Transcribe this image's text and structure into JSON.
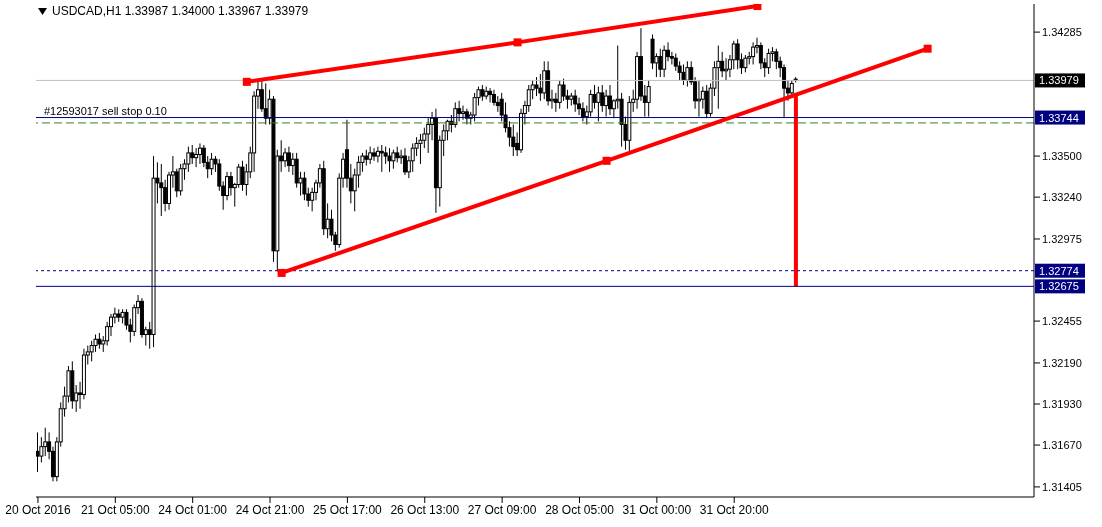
{
  "chart_data": {
    "type": "candlestick",
    "title": "USDCAD,H1  1.33987 1.34000 1.33967 1.33979",
    "categories": [
      "20 Oct 2016",
      null,
      null,
      null,
      null,
      null,
      null,
      null,
      null,
      null,
      null,
      null,
      null,
      null,
      null,
      null,
      null,
      null,
      null,
      null,
      "21 Oct 05:00",
      null,
      null,
      null,
      null,
      null,
      null,
      null,
      null,
      null,
      null,
      null,
      null,
      null,
      null,
      null,
      null,
      null,
      null,
      null,
      "24 Oct 01:00",
      null,
      null,
      null,
      null,
      null,
      null,
      null,
      null,
      null,
      null,
      null,
      null,
      null,
      null,
      null,
      null,
      null,
      null,
      null,
      "24 Oct 21:00",
      null,
      null,
      null,
      null,
      null,
      null,
      null,
      null,
      null,
      null,
      null,
      null,
      null,
      null,
      null,
      null,
      null,
      null,
      null,
      "25 Oct 17:00",
      null,
      null,
      null,
      null,
      null,
      null,
      null,
      null,
      null,
      null,
      null,
      null,
      null,
      null,
      null,
      null,
      null,
      null,
      null,
      "26 Oct 13:00",
      null,
      null,
      null,
      null,
      null,
      null,
      null,
      null,
      null,
      null,
      null,
      null,
      null,
      null,
      null,
      null,
      null,
      null,
      null,
      "27 Oct 09:00",
      null,
      null,
      null,
      null,
      null,
      null,
      null,
      null,
      null,
      null,
      null,
      null,
      null,
      null,
      null,
      null,
      null,
      null,
      null,
      "28 Oct 05:00",
      null,
      null,
      null,
      null,
      null,
      null,
      null,
      null,
      null,
      null,
      null,
      null,
      null,
      null,
      null,
      null,
      null,
      null,
      null,
      "31 Oct 00:00",
      null,
      null,
      null,
      null,
      null,
      null,
      null,
      null,
      null,
      null,
      null,
      null,
      null,
      null,
      null,
      null,
      null,
      null,
      null,
      "31 Oct 20:00",
      null,
      null,
      null,
      null,
      null,
      null,
      null,
      null,
      null,
      null,
      null,
      null,
      null,
      null,
      null,
      null,
      null,
      null,
      null,
      null,
      null,
      null,
      null,
      null,
      null,
      null,
      null,
      null,
      null,
      null,
      null,
      null,
      null,
      null,
      null,
      null,
      null,
      null,
      null,
      null,
      null,
      null,
      null,
      null,
      null,
      null,
      null,
      null,
      null,
      null,
      null,
      null,
      null,
      null,
      null,
      null,
      null,
      null,
      null,
      null,
      null,
      null,
      null,
      null,
      null,
      null,
      null,
      null,
      null,
      null,
      null,
      null,
      null,
      null,
      null,
      null,
      null
    ],
    "ohlc": [
      [
        1.3163,
        1.3175,
        1.315,
        1.316
      ],
      [
        1.316,
        1.3172,
        1.3156,
        1.3166
      ],
      [
        1.3166,
        1.3178,
        1.316,
        1.3169
      ],
      [
        1.3169,
        1.3175,
        1.3158,
        1.3163
      ],
      [
        1.3163,
        1.3166,
        1.3144,
        1.3147
      ],
      [
        1.3147,
        1.3172,
        1.3144,
        1.3169
      ],
      [
        1.3169,
        1.3194,
        1.3166,
        1.319
      ],
      [
        1.319,
        1.3204,
        1.3185,
        1.3198
      ],
      [
        1.3198,
        1.3217,
        1.3194,
        1.3214
      ],
      [
        1.3214,
        1.322,
        1.319,
        1.3195
      ],
      [
        1.3195,
        1.3205,
        1.3188,
        1.32
      ],
      [
        1.32,
        1.3207,
        1.319,
        1.3199
      ],
      [
        1.3199,
        1.3228,
        1.3196,
        1.3224
      ],
      [
        1.3224,
        1.323,
        1.3218,
        1.3226
      ],
      [
        1.3226,
        1.3233,
        1.322,
        1.323
      ],
      [
        1.323,
        1.3237,
        1.3226,
        1.3234
      ],
      [
        1.3234,
        1.3238,
        1.3228,
        1.3231
      ],
      [
        1.3231,
        1.3236,
        1.3226,
        1.3233
      ],
      [
        1.3233,
        1.3245,
        1.323,
        1.3242
      ],
      [
        1.3242,
        1.325,
        1.3236,
        1.3248
      ],
      [
        1.3248,
        1.3254,
        1.3244,
        1.325
      ],
      [
        1.325,
        1.3253,
        1.3245,
        1.3248
      ],
      [
        1.3248,
        1.3253,
        1.3244,
        1.3251
      ],
      [
        1.3251,
        1.3253,
        1.324,
        1.3243
      ],
      [
        1.3243,
        1.3247,
        1.3232,
        1.3239
      ],
      [
        1.3239,
        1.3256,
        1.3236,
        1.3254
      ],
      [
        1.3254,
        1.3262,
        1.325,
        1.3258
      ],
      [
        1.3258,
        1.326,
        1.3235,
        1.3237
      ],
      [
        1.3237,
        1.3242,
        1.323,
        1.324
      ],
      [
        1.324,
        1.3245,
        1.3228,
        1.3237
      ],
      [
        1.3237,
        1.335,
        1.3229,
        1.3336
      ],
      [
        1.3336,
        1.3346,
        1.332,
        1.3333
      ],
      [
        1.3333,
        1.3345,
        1.3312,
        1.333
      ],
      [
        1.333,
        1.3335,
        1.3315,
        1.332
      ],
      [
        1.332,
        1.334,
        1.3316,
        1.3338
      ],
      [
        1.3338,
        1.335,
        1.333,
        1.334
      ],
      [
        1.334,
        1.3342,
        1.3324,
        1.3328
      ],
      [
        1.3328,
        1.3345,
        1.3325,
        1.3342
      ],
      [
        1.3342,
        1.3348,
        1.3335,
        1.3345
      ],
      [
        1.3345,
        1.3356,
        1.334,
        1.3352
      ],
      [
        1.3352,
        1.3357,
        1.3345,
        1.3349
      ],
      [
        1.3349,
        1.3355,
        1.3343,
        1.3351
      ],
      [
        1.3351,
        1.3358,
        1.3345,
        1.3355
      ],
      [
        1.3355,
        1.3357,
        1.3343,
        1.3346
      ],
      [
        1.3346,
        1.335,
        1.3336,
        1.3342
      ],
      [
        1.3342,
        1.3352,
        1.3338,
        1.3348
      ],
      [
        1.3348,
        1.335,
        1.334,
        1.3345
      ],
      [
        1.3345,
        1.3348,
        1.3328,
        1.3331
      ],
      [
        1.3331,
        1.3334,
        1.3316,
        1.3325
      ],
      [
        1.3325,
        1.334,
        1.3322,
        1.3337
      ],
      [
        1.3337,
        1.334,
        1.3325,
        1.333
      ],
      [
        1.333,
        1.3333,
        1.3318,
        1.3332
      ],
      [
        1.3332,
        1.3345,
        1.333,
        1.3343
      ],
      [
        1.3343,
        1.3347,
        1.3328,
        1.3332
      ],
      [
        1.3332,
        1.3345,
        1.3325,
        1.334
      ],
      [
        1.334,
        1.3356,
        1.3336,
        1.3352
      ],
      [
        1.3352,
        1.3391,
        1.334,
        1.3388
      ],
      [
        1.3388,
        1.3399,
        1.338,
        1.3392
      ],
      [
        1.3392,
        1.3398,
        1.3378,
        1.338
      ],
      [
        1.338,
        1.3396,
        1.337,
        1.3374
      ],
      [
        1.3374,
        1.3392,
        1.337,
        1.3386
      ],
      [
        1.3386,
        1.3388,
        1.3283,
        1.329
      ],
      [
        1.329,
        1.3354,
        1.3277,
        1.335
      ],
      [
        1.335,
        1.336,
        1.334,
        1.3347
      ],
      [
        1.3347,
        1.3355,
        1.3343,
        1.3352
      ],
      [
        1.3352,
        1.3356,
        1.334,
        1.3344
      ],
      [
        1.3344,
        1.3352,
        1.3338,
        1.3348
      ],
      [
        1.3348,
        1.3352,
        1.333,
        1.3333
      ],
      [
        1.3333,
        1.334,
        1.3325,
        1.3336
      ],
      [
        1.3336,
        1.334,
        1.3322,
        1.3326
      ],
      [
        1.3326,
        1.333,
        1.3318,
        1.3322
      ],
      [
        1.3322,
        1.333,
        1.3315,
        1.3327
      ],
      [
        1.3327,
        1.3335,
        1.3322,
        1.3333
      ],
      [
        1.3333,
        1.3345,
        1.333,
        1.3342
      ],
      [
        1.3342,
        1.3347,
        1.33,
        1.3304
      ],
      [
        1.3304,
        1.332,
        1.3298,
        1.331
      ],
      [
        1.331,
        1.3316,
        1.3296,
        1.33
      ],
      [
        1.33,
        1.3302,
        1.329,
        1.3294
      ],
      [
        1.3294,
        1.3339,
        1.3292,
        1.3336
      ],
      [
        1.3336,
        1.3352,
        1.333,
        1.3348
      ],
      [
        1.3354,
        1.3373,
        1.333,
        1.3336
      ],
      [
        1.3336,
        1.3345,
        1.332,
        1.3328
      ],
      [
        1.3328,
        1.3342,
        1.3315,
        1.3338
      ],
      [
        1.3338,
        1.335,
        1.333,
        1.3346
      ],
      [
        1.3346,
        1.3352,
        1.334,
        1.335
      ],
      [
        1.335,
        1.3354,
        1.3344,
        1.3348
      ],
      [
        1.3348,
        1.3356,
        1.3345,
        1.3352
      ],
      [
        1.3352,
        1.3355,
        1.3347,
        1.335
      ],
      [
        1.335,
        1.3356,
        1.3346,
        1.3353
      ],
      [
        1.3353,
        1.3357,
        1.334,
        1.3352
      ],
      [
        1.3352,
        1.3356,
        1.3345,
        1.335
      ],
      [
        1.335,
        1.3355,
        1.334,
        1.3347
      ],
      [
        1.3347,
        1.3354,
        1.3342,
        1.3352
      ],
      [
        1.3352,
        1.3356,
        1.3346,
        1.3349
      ],
      [
        1.3349,
        1.3354,
        1.3345,
        1.335
      ],
      [
        1.335,
        1.3355,
        1.3338,
        1.334
      ],
      [
        1.334,
        1.335,
        1.3336,
        1.3347
      ],
      [
        1.3347,
        1.3358,
        1.334,
        1.3355
      ],
      [
        1.3355,
        1.3362,
        1.335,
        1.3358
      ],
      [
        1.3358,
        1.3364,
        1.3345,
        1.336
      ],
      [
        1.336,
        1.3368,
        1.3355,
        1.3364
      ],
      [
        1.3364,
        1.3374,
        1.3352,
        1.337
      ],
      [
        1.337,
        1.3378,
        1.336,
        1.3374
      ],
      [
        1.3374,
        1.338,
        1.3314,
        1.333
      ],
      [
        1.333,
        1.3363,
        1.3318,
        1.336
      ],
      [
        1.336,
        1.337,
        1.335,
        1.3366
      ],
      [
        1.3366,
        1.3373,
        1.336,
        1.3372
      ],
      [
        1.3372,
        1.3376,
        1.3365,
        1.337
      ],
      [
        1.337,
        1.3384,
        1.3368,
        1.338
      ],
      [
        1.338,
        1.3385,
        1.3372,
        1.3377
      ],
      [
        1.3377,
        1.3382,
        1.3373,
        1.3378
      ],
      [
        1.3378,
        1.338,
        1.337,
        1.3374
      ],
      [
        1.3374,
        1.3378,
        1.337,
        1.3376
      ],
      [
        1.3376,
        1.339,
        1.3372,
        1.3387
      ],
      [
        1.3387,
        1.3394,
        1.3382,
        1.3392
      ],
      [
        1.3392,
        1.3395,
        1.3385,
        1.3388
      ],
      [
        1.3388,
        1.3394,
        1.3386,
        1.3391
      ],
      [
        1.3391,
        1.3393,
        1.3384,
        1.3389
      ],
      [
        1.3389,
        1.3392,
        1.3382,
        1.3384
      ],
      [
        1.3384,
        1.3388,
        1.3378,
        1.3382
      ],
      [
        1.3386,
        1.339,
        1.3372,
        1.3376
      ],
      [
        1.3376,
        1.3384,
        1.3365,
        1.3368
      ],
      [
        1.3368,
        1.3372,
        1.3356,
        1.3362
      ],
      [
        1.3362,
        1.337,
        1.335,
        1.3356
      ],
      [
        1.3358,
        1.3365,
        1.335,
        1.3354
      ],
      [
        1.3354,
        1.338,
        1.3352,
        1.3377
      ],
      [
        1.3377,
        1.3385,
        1.337,
        1.3382
      ],
      [
        1.3382,
        1.3395,
        1.3378,
        1.3392
      ],
      [
        1.3392,
        1.3398,
        1.3386,
        1.3395
      ],
      [
        1.3395,
        1.34,
        1.3388,
        1.3393
      ],
      [
        1.3393,
        1.3402,
        1.3385,
        1.339
      ],
      [
        1.339,
        1.341,
        1.3386,
        1.3404
      ],
      [
        1.3404,
        1.341,
        1.3382,
        1.3385
      ],
      [
        1.3385,
        1.3392,
        1.338,
        1.3386
      ],
      [
        1.3386,
        1.339,
        1.3378,
        1.3384
      ],
      [
        1.3384,
        1.3398,
        1.338,
        1.3395
      ],
      [
        1.3395,
        1.3399,
        1.3385,
        1.3388
      ],
      [
        1.3388,
        1.3392,
        1.338,
        1.3386
      ],
      [
        1.3386,
        1.339,
        1.3382,
        1.3388
      ],
      [
        1.3388,
        1.3392,
        1.3378,
        1.3383
      ],
      [
        1.3383,
        1.3387,
        1.3376,
        1.338
      ],
      [
        1.338,
        1.3384,
        1.3372,
        1.3375
      ],
      [
        1.3375,
        1.3382,
        1.337,
        1.3378
      ],
      [
        1.3378,
        1.3392,
        1.3375,
        1.3389
      ],
      [
        1.3389,
        1.3395,
        1.338,
        1.3384
      ],
      [
        1.3384,
        1.3394,
        1.3372,
        1.339
      ],
      [
        1.339,
        1.3395,
        1.3378,
        1.3382
      ],
      [
        1.3382,
        1.3392,
        1.3375,
        1.3388
      ],
      [
        1.3388,
        1.3395,
        1.3376,
        1.338
      ],
      [
        1.338,
        1.3386,
        1.3374,
        1.3385
      ],
      [
        1.3385,
        1.342,
        1.338,
        1.3386
      ],
      [
        1.3386,
        1.339,
        1.3356,
        1.337
      ],
      [
        1.337,
        1.3375,
        1.3354,
        1.336
      ],
      [
        1.336,
        1.3388,
        1.3352,
        1.3384
      ],
      [
        1.3384,
        1.3392,
        1.3378,
        1.3386
      ],
      [
        1.3386,
        1.3416,
        1.338,
        1.3413
      ],
      [
        1.3413,
        1.3431,
        1.3385,
        1.3388
      ],
      [
        1.3388,
        1.3395,
        1.3375,
        1.3384
      ],
      [
        1.3384,
        1.3398,
        1.3375,
        1.3394
      ],
      [
        1.3424,
        1.3427,
        1.3405,
        1.3409
      ],
      [
        1.3409,
        1.3415,
        1.34,
        1.3413
      ],
      [
        1.3413,
        1.3418,
        1.34,
        1.3405
      ],
      [
        1.3405,
        1.342,
        1.34,
        1.3417
      ],
      [
        1.3417,
        1.3422,
        1.341,
        1.3413
      ],
      [
        1.3413,
        1.3416,
        1.3408,
        1.3412
      ],
      [
        1.3412,
        1.3415,
        1.3404,
        1.3407
      ],
      [
        1.3407,
        1.341,
        1.3398,
        1.3403
      ],
      [
        1.3403,
        1.3408,
        1.3395,
        1.3398
      ],
      [
        1.3398,
        1.341,
        1.3394,
        1.3406
      ],
      [
        1.3406,
        1.341,
        1.3395,
        1.3397
      ],
      [
        1.3397,
        1.34,
        1.338,
        1.3385
      ],
      [
        1.3385,
        1.3398,
        1.3375,
        1.3386
      ],
      [
        1.3386,
        1.3394,
        1.338,
        1.3391
      ],
      [
        1.3391,
        1.3395,
        1.3374,
        1.3377
      ],
      [
        1.3377,
        1.3396,
        1.3375,
        1.3393
      ],
      [
        1.3393,
        1.341,
        1.3388,
        1.3406
      ],
      [
        1.3406,
        1.342,
        1.338,
        1.341
      ],
      [
        1.341,
        1.3416,
        1.34,
        1.3404
      ],
      [
        1.3404,
        1.3412,
        1.3398,
        1.3405
      ],
      [
        1.3405,
        1.3414,
        1.34,
        1.3411
      ],
      [
        1.3411,
        1.3423,
        1.3405,
        1.3421
      ],
      [
        1.3421,
        1.3424,
        1.3405,
        1.3411
      ],
      [
        1.3411,
        1.3415,
        1.3402,
        1.3406
      ],
      [
        1.3406,
        1.3414,
        1.3403,
        1.3412
      ],
      [
        1.3412,
        1.3416,
        1.3408,
        1.3413
      ],
      [
        1.3413,
        1.3422,
        1.3408,
        1.3419
      ],
      [
        1.3419,
        1.3425,
        1.3415,
        1.342
      ],
      [
        1.342,
        1.3422,
        1.3405,
        1.3409
      ],
      [
        1.3409,
        1.3412,
        1.34,
        1.3406
      ],
      [
        1.3406,
        1.3418,
        1.3402,
        1.3415
      ],
      [
        1.3415,
        1.3419,
        1.341,
        1.3416
      ],
      [
        1.3416,
        1.3418,
        1.3405,
        1.341
      ],
      [
        1.341,
        1.3413,
        1.34,
        1.3406
      ],
      [
        1.3406,
        1.3408,
        1.3374,
        1.3393
      ],
      [
        1.3393,
        1.3398,
        1.3385,
        1.339
      ],
      [
        1.339,
        1.3398,
        1.3388,
        1.3396
      ],
      [
        1.33987,
        1.34,
        1.33967,
        1.33979
      ],
      null,
      null,
      null,
      null,
      null,
      null,
      null,
      null,
      null,
      null,
      null,
      null,
      null,
      null,
      null,
      null,
      null,
      null,
      null,
      null,
      null,
      null,
      null,
      null,
      null,
      null,
      null,
      null,
      null,
      null,
      null,
      null,
      null,
      null,
      null,
      null,
      null,
      null,
      null,
      null,
      null,
      null,
      null,
      null,
      null,
      null,
      null,
      null,
      null,
      null,
      null,
      null,
      null,
      null,
      null,
      null,
      null,
      null,
      null,
      null,
      null
    ],
    "series": [
      {
        "type": "line",
        "color": "#ff0000",
        "marker": "square",
        "values": [
          null,
          null,
          null,
          null,
          null,
          null,
          null,
          null,
          null,
          null,
          null,
          null,
          null,
          null,
          null,
          null,
          null,
          null,
          null,
          null,
          null,
          null,
          null,
          null,
          null,
          null,
          null,
          null,
          null,
          null,
          null,
          null,
          null,
          null,
          null,
          null,
          null,
          null,
          null,
          null,
          null,
          null,
          null,
          null,
          null,
          null,
          null,
          null,
          null,
          null,
          null,
          null,
          null,
          null,
          1.3397,
          null,
          null,
          null,
          null,
          null,
          null,
          null,
          null,
          null,
          null,
          null,
          null,
          null,
          null,
          null,
          null,
          null,
          null,
          null,
          null,
          null,
          null,
          null,
          null,
          null,
          null,
          null,
          null,
          null,
          null,
          null,
          null,
          null,
          null,
          null,
          null,
          null,
          null,
          null,
          null,
          null,
          null,
          null,
          null,
          null,
          null,
          null,
          null,
          null,
          null,
          null,
          null,
          null,
          null,
          null,
          null,
          null,
          null,
          null,
          null,
          null,
          null,
          null,
          null,
          null,
          null,
          null,
          null,
          null,
          1.3422,
          null,
          null,
          null,
          null,
          null,
          null,
          null,
          null,
          null,
          null,
          null,
          null,
          null,
          null,
          null,
          null,
          null,
          null,
          null,
          null,
          null,
          null,
          null,
          null,
          null,
          null,
          null,
          null,
          null,
          null,
          null,
          null,
          null,
          null,
          null,
          null,
          null,
          null,
          null,
          null,
          null,
          null,
          null,
          null,
          null,
          null,
          null,
          null,
          null,
          null,
          null,
          null,
          null,
          null,
          null,
          null,
          null,
          null,
          null,
          null,
          null,
          1.3445,
          null,
          null,
          null,
          null,
          null,
          null,
          null,
          null,
          null,
          null,
          null,
          null,
          null,
          null,
          null,
          null,
          null,
          null,
          null,
          null,
          null,
          null,
          null,
          null,
          null,
          null,
          null,
          null,
          null,
          null,
          null,
          null,
          null,
          null,
          null,
          null,
          null,
          null,
          null,
          null,
          null,
          null,
          null,
          null,
          null,
          null,
          null,
          null,
          null,
          null,
          null,
          null,
          null,
          null,
          null,
          null,
          null,
          null,
          null,
          null,
          null,
          null,
          null,
          null,
          null,
          null,
          null,
          null,
          null,
          null,
          null
        ]
      },
      {
        "type": "line",
        "color": "#ff0000",
        "marker": "square",
        "values": [
          null,
          null,
          null,
          null,
          null,
          null,
          null,
          null,
          null,
          null,
          null,
          null,
          null,
          null,
          null,
          null,
          null,
          null,
          null,
          null,
          null,
          null,
          null,
          null,
          null,
          null,
          null,
          null,
          null,
          null,
          null,
          null,
          null,
          null,
          null,
          null,
          null,
          null,
          null,
          null,
          null,
          null,
          null,
          null,
          null,
          null,
          null,
          null,
          null,
          null,
          null,
          null,
          null,
          null,
          null,
          null,
          null,
          null,
          null,
          null,
          null,
          null,
          null,
          1.3276,
          null,
          null,
          null,
          null,
          null,
          null,
          null,
          null,
          null,
          null,
          null,
          null,
          null,
          null,
          null,
          null,
          null,
          null,
          null,
          null,
          null,
          null,
          null,
          null,
          null,
          null,
          null,
          null,
          null,
          null,
          null,
          null,
          null,
          null,
          null,
          null,
          null,
          null,
          null,
          null,
          null,
          null,
          null,
          null,
          null,
          null,
          null,
          null,
          null,
          null,
          null,
          null,
          null,
          null,
          null,
          null,
          null,
          null,
          null,
          null,
          null,
          null,
          null,
          null,
          null,
          null,
          null,
          null,
          null,
          null,
          null,
          null,
          null,
          null,
          null,
          null,
          null,
          null,
          null,
          null,
          null,
          null,
          null,
          1.3347,
          null,
          null,
          null,
          null,
          null,
          null,
          null,
          null,
          null,
          null,
          null,
          null,
          null,
          null,
          null,
          null,
          null,
          null,
          null,
          null,
          null,
          null,
          null,
          null,
          null,
          null,
          null,
          null,
          null,
          null,
          null,
          null,
          null,
          null,
          null,
          null,
          null,
          null,
          null,
          null,
          null,
          null,
          null,
          null,
          null,
          null,
          null,
          null,
          null,
          null,
          null,
          null,
          null,
          null,
          null,
          null,
          null,
          null,
          null,
          null,
          null,
          null,
          null,
          null,
          null,
          null,
          null,
          null,
          null,
          null,
          null,
          null,
          null,
          null,
          null,
          null,
          null,
          null,
          null,
          null,
          null,
          null,
          1.3418,
          null,
          null,
          null,
          null,
          null,
          null,
          null,
          null,
          null,
          null,
          null,
          null,
          null,
          null,
          null,
          null,
          null,
          null,
          null,
          null,
          null,
          null,
          null,
          null,
          null,
          null,
          null
        ]
      },
      {
        "type": "bar",
        "color": "#ff0000",
        "base": [
          null,
          null,
          null,
          null,
          null,
          null,
          null,
          null,
          null,
          null,
          null,
          null,
          null,
          null,
          null,
          null,
          null,
          null,
          null,
          null,
          null,
          null,
          null,
          null,
          null,
          null,
          null,
          null,
          null,
          null,
          null,
          null,
          null,
          null,
          null,
          null,
          null,
          null,
          null,
          null,
          null,
          null,
          null,
          null,
          null,
          null,
          null,
          null,
          null,
          null,
          null,
          null,
          null,
          null,
          null,
          null,
          null,
          null,
          null,
          null,
          null,
          null,
          null,
          null,
          null,
          null,
          null,
          null,
          null,
          null,
          null,
          null,
          null,
          null,
          null,
          null,
          null,
          null,
          null,
          null,
          null,
          null,
          null,
          null,
          null,
          null,
          null,
          null,
          null,
          null,
          null,
          null,
          null,
          null,
          null,
          null,
          null,
          null,
          null,
          null,
          null,
          null,
          null,
          null,
          null,
          null,
          null,
          null,
          null,
          null,
          null,
          null,
          null,
          null,
          null,
          null,
          null,
          null,
          null,
          null,
          null,
          null,
          null,
          null,
          null,
          null,
          null,
          null,
          null,
          null,
          null,
          null,
          null,
          null,
          null,
          null,
          null,
          null,
          null,
          null,
          null,
          null,
          null,
          null,
          null,
          null,
          null,
          null,
          null,
          null,
          null,
          null,
          null,
          null,
          null,
          null,
          null,
          null,
          null,
          null,
          null,
          null,
          null,
          null,
          null,
          null,
          null,
          null,
          null,
          null,
          null,
          null,
          null,
          null,
          null,
          null,
          null,
          null,
          null,
          null,
          null,
          null,
          null,
          null,
          null,
          null,
          null,
          null,
          null,
          null,
          null,
          null,
          null,
          null,
          null,
          null,
          1.32675,
          null,
          null,
          null,
          null,
          null,
          null,
          null,
          null,
          null,
          null,
          null,
          null,
          null,
          null,
          null,
          null,
          null,
          null,
          null,
          null,
          null,
          null,
          null,
          null,
          null,
          null,
          null,
          null,
          null,
          null,
          null,
          null,
          null,
          null,
          null,
          null,
          null,
          null,
          null,
          null,
          null,
          null,
          null,
          null,
          null,
          null,
          null,
          null,
          null,
          null,
          null,
          null,
          null,
          null,
          null,
          null,
          null,
          null,
          null,
          null,
          null
        ],
        "values": [
          null,
          null,
          null,
          null,
          null,
          null,
          null,
          null,
          null,
          null,
          null,
          null,
          null,
          null,
          null,
          null,
          null,
          null,
          null,
          null,
          null,
          null,
          null,
          null,
          null,
          null,
          null,
          null,
          null,
          null,
          null,
          null,
          null,
          null,
          null,
          null,
          null,
          null,
          null,
          null,
          null,
          null,
          null,
          null,
          null,
          null,
          null,
          null,
          null,
          null,
          null,
          null,
          null,
          null,
          null,
          null,
          null,
          null,
          null,
          null,
          null,
          null,
          null,
          null,
          null,
          null,
          null,
          null,
          null,
          null,
          null,
          null,
          null,
          null,
          null,
          null,
          null,
          null,
          null,
          null,
          null,
          null,
          null,
          null,
          null,
          null,
          null,
          null,
          null,
          null,
          null,
          null,
          null,
          null,
          null,
          null,
          null,
          null,
          null,
          null,
          null,
          null,
          null,
          null,
          null,
          null,
          null,
          null,
          null,
          null,
          null,
          null,
          null,
          null,
          null,
          null,
          null,
          null,
          null,
          null,
          null,
          null,
          null,
          null,
          null,
          null,
          null,
          null,
          null,
          null,
          null,
          null,
          null,
          null,
          null,
          null,
          null,
          null,
          null,
          null,
          null,
          null,
          null,
          null,
          null,
          null,
          null,
          null,
          null,
          null,
          null,
          null,
          null,
          null,
          null,
          null,
          null,
          null,
          null,
          null,
          null,
          null,
          null,
          null,
          null,
          null,
          null,
          null,
          null,
          null,
          null,
          null,
          null,
          null,
          null,
          null,
          null,
          null,
          null,
          null,
          null,
          null,
          null,
          null,
          null,
          null,
          null,
          null,
          null,
          null,
          null,
          null,
          null,
          null,
          null,
          null,
          0.01225,
          null,
          null,
          null,
          null,
          null,
          null,
          null,
          null,
          null,
          null,
          null,
          null,
          null,
          null,
          null,
          null,
          null,
          null,
          null,
          null,
          null,
          null,
          null,
          null,
          null,
          null,
          null,
          null,
          null,
          null,
          null,
          null,
          null,
          null,
          null,
          null,
          null,
          null,
          null,
          null,
          null,
          null,
          null,
          null,
          null,
          null,
          null,
          null,
          null,
          null,
          null,
          null,
          null,
          null,
          null,
          null,
          null,
          null,
          null,
          null,
          null
        ]
      }
    ],
    "ylim": [
      1.31341,
      1.34463
    ],
    "yticks": [
      1.31405,
      {
        "value": 1.3167,
        "label": "1.31670"
      },
      {
        "value": 1.3193,
        "label": "1.31930"
      },
      {
        "value": 1.3219,
        "label": "1.32190"
      },
      1.32455,
      1.32975,
      {
        "value": 1.3324,
        "label": "1.33240"
      },
      {
        "value": 1.335,
        "label": "1.33500"
      },
      1.34285
    ],
    "ref_lines": [
      {
        "axis": "y",
        "value": 1.33979,
        "label": "1.33979",
        "color": "#c0c0c0",
        "line_style": "solid"
      },
      {
        "axis": "y",
        "value": 1.33744,
        "label": "1.33744",
        "color": "#000080",
        "line_style": "solid"
      },
      {
        "axis": "y",
        "value": 1.3371,
        "color": "#2e7d32",
        "line_style": "dashed"
      },
      {
        "axis": "y",
        "value": 1.32774,
        "label": "1.32774",
        "color": "#000080",
        "line_style": "dotted"
      },
      {
        "axis": "y",
        "value": 1.32675,
        "label": "1.32675",
        "color": "#000080",
        "line_style": "solid"
      }
    ],
    "annotations": [
      {
        "text": "#12593017 sell stop 0.10",
        "y": 1.33744
      }
    ],
    "line_style": "solid"
  }
}
